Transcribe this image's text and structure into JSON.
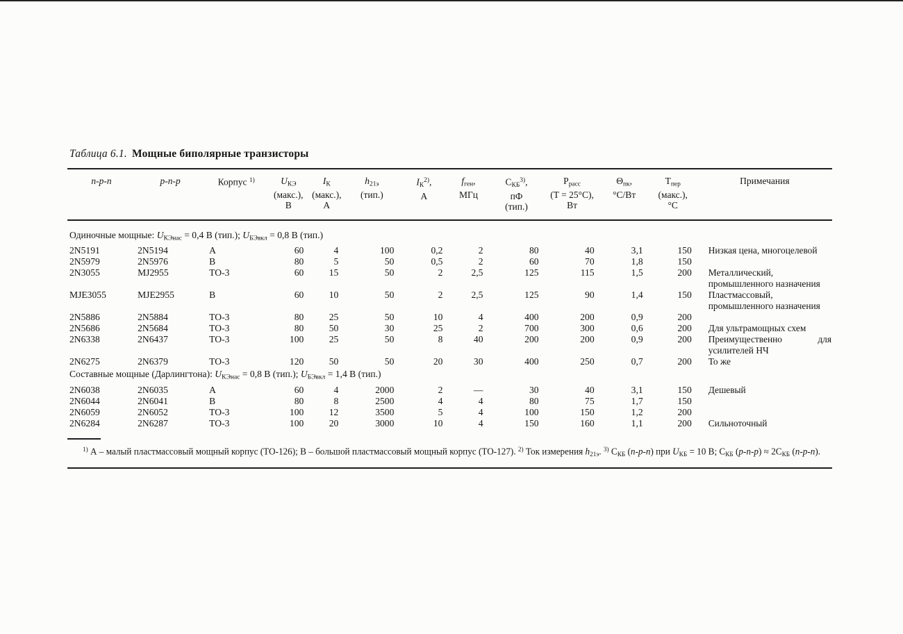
{
  "caption": {
    "label": "Таблица 6.1.",
    "text": "Мощные биполярные транзисторы"
  },
  "table": {
    "headers": [
      [
        {
          "t": "n-p-n",
          "i": true
        }
      ],
      [
        {
          "t": "p-n-p",
          "i": true
        }
      ],
      [
        {
          "t": "Корпус "
        },
        {
          "t": "1)",
          "sup": true
        }
      ],
      [
        {
          "t": "U",
          "i": true
        },
        {
          "t": "КЭ",
          "sub": true
        },
        {
          "t": "\n(макс.),\nВ"
        }
      ],
      [
        {
          "t": "I",
          "i": true
        },
        {
          "t": "К",
          "sub": true
        },
        {
          "t": "\n(макс.),\nА"
        }
      ],
      [
        {
          "t": "h",
          "i": true
        },
        {
          "t": "21э",
          "sub": true
        },
        {
          "t": "\n(тип.)"
        }
      ],
      [
        {
          "t": "I",
          "i": true
        },
        {
          "t": "К",
          "sub": true
        },
        {
          "t": "2)",
          "sup": true
        },
        {
          "t": ",\nА"
        }
      ],
      [
        {
          "t": "f",
          "i": true
        },
        {
          "t": "ген",
          "sub": true
        },
        {
          "t": ",\nМГц"
        }
      ],
      [
        {
          "t": "С"
        },
        {
          "t": "КБ",
          "sub": true
        },
        {
          "t": "3)",
          "sup": true
        },
        {
          "t": ",\nпФ\n(тип.)"
        }
      ],
      [
        {
          "t": "P"
        },
        {
          "t": "расс",
          "sub": true
        },
        {
          "t": "\n(T = 25°С),\nВт"
        }
      ],
      [
        {
          "t": "Θ"
        },
        {
          "t": "пк",
          "sub": true
        },
        {
          "t": ",\n°С/Вт"
        }
      ],
      [
        {
          "t": "Т"
        },
        {
          "t": "пер",
          "sub": true
        },
        {
          "t": "\n(макс.),\n°С"
        }
      ],
      [
        {
          "t": "Примечания"
        }
      ]
    ],
    "sections": [
      {
        "heading": [
          {
            "t": "Одиночные мощные: "
          },
          {
            "t": "U",
            "i": true
          },
          {
            "t": "КЭнас",
            "sub": true
          },
          {
            "t": " = 0,4 В (тип.); "
          },
          {
            "t": "U",
            "i": true
          },
          {
            "t": "БЭвкл",
            "sub": true
          },
          {
            "t": " = 0,8 В (тип.)"
          }
        ],
        "rows": [
          [
            "2N5191",
            "2N5194",
            "А",
            "60",
            "4",
            "100",
            "0,2",
            "2",
            "80",
            "40",
            "3,1",
            "150",
            "Низкая цена, многоцелевой"
          ],
          [
            "2N5979",
            "2N5976",
            "В",
            "80",
            "5",
            "50",
            "0,5",
            "2",
            "60",
            "70",
            "1,8",
            "150",
            ""
          ],
          [
            "2N3055",
            "MJ2955",
            "ТО-3",
            "60",
            "15",
            "50",
            "2",
            "2,5",
            "125",
            "115",
            "1,5",
            "200",
            "Металлический, промышленного назначения"
          ],
          [
            "MJE3055",
            "MJE2955",
            "В",
            "60",
            "10",
            "50",
            "2",
            "2,5",
            "125",
            "90",
            "1,4",
            "150",
            "Пластмассовый, промышленного назначения"
          ],
          [
            "2N5886",
            "2N5884",
            "ТО-3",
            "80",
            "25",
            "50",
            "10",
            "4",
            "400",
            "200",
            "0,9",
            "200",
            ""
          ],
          [
            "2N5686",
            "2N5684",
            "ТО-3",
            "80",
            "50",
            "30",
            "25",
            "2",
            "700",
            "300",
            "0,6",
            "200",
            "Для ультрамощных схем"
          ],
          [
            "2N6338",
            "2N6437",
            "ТО-3",
            "100",
            "25",
            "50",
            "8",
            "40",
            "200",
            "200",
            "0,9",
            "200",
            "Преимущественно для усилителей НЧ"
          ],
          [
            "2N6275",
            "2N6379",
            "ТО-3",
            "120",
            "50",
            "50",
            "20",
            "30",
            "400",
            "250",
            "0,7",
            "200",
            "То же"
          ]
        ]
      },
      {
        "heading": [
          {
            "t": "Составные мощные (Дарлингтона): "
          },
          {
            "t": "U",
            "i": true
          },
          {
            "t": "КЭнас",
            "sub": true
          },
          {
            "t": " = 0,8 В (тип.); "
          },
          {
            "t": "U",
            "i": true
          },
          {
            "t": "БЭвкл",
            "sub": true
          },
          {
            "t": " = 1,4 В (тип.)"
          }
        ],
        "rows": [
          [
            "2N6038",
            "2N6035",
            "А",
            "60",
            "4",
            "2000",
            "2",
            "—",
            "30",
            "40",
            "3,1",
            "150",
            "Дешевый"
          ],
          [
            "2N6044",
            "2N6041",
            "В",
            "80",
            "8",
            "2500",
            "4",
            "4",
            "80",
            "75",
            "1,7",
            "150",
            ""
          ],
          [
            "2N6059",
            "2N6052",
            "ТО-3",
            "100",
            "12",
            "3500",
            "5",
            "4",
            "100",
            "150",
            "1,2",
            "200",
            ""
          ],
          [
            "2N6284",
            "2N6287",
            "ТО-3",
            "100",
            "20",
            "3000",
            "10",
            "4",
            "150",
            "160",
            "1,1",
            "200",
            "Сильноточный"
          ]
        ]
      }
    ]
  },
  "footnote": {
    "segments": [
      {
        "t": "1)",
        "sup": true
      },
      {
        "t": " А – малый пластмассовый мощный корпус (ТО-126); В – большой пластмассовый мощный корпус (ТО-127). "
      },
      {
        "t": "2)",
        "sup": true
      },
      {
        "t": " Ток измерения "
      },
      {
        "t": "h",
        "i": true
      },
      {
        "t": "21э",
        "sub": true
      },
      {
        "t": ". "
      },
      {
        "t": "3)",
        "sup": true
      },
      {
        "t": " С"
      },
      {
        "t": "КБ",
        "sub": true
      },
      {
        "t": " ("
      },
      {
        "t": "n-p-n",
        "i": true
      },
      {
        "t": ") при "
      },
      {
        "t": "U",
        "i": true
      },
      {
        "t": "КБ",
        "sub": true
      },
      {
        "t": " = 10 В; С"
      },
      {
        "t": "КБ",
        "sub": true
      },
      {
        "t": " ("
      },
      {
        "t": "p-n-p",
        "i": true
      },
      {
        "t": ") ≈ 2С"
      },
      {
        "t": "КБ",
        "sub": true
      },
      {
        "t": " ("
      },
      {
        "t": "n-p-n",
        "i": true
      },
      {
        "t": ")."
      }
    ]
  }
}
